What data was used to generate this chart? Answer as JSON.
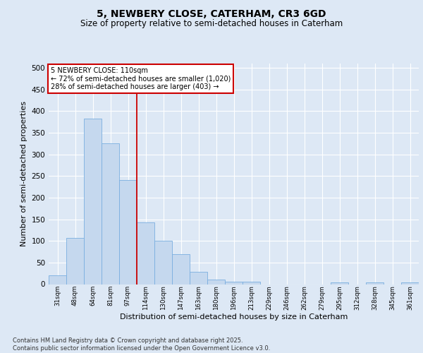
{
  "title_line1": "5, NEWBERY CLOSE, CATERHAM, CR3 6GD",
  "title_line2": "Size of property relative to semi-detached houses in Caterham",
  "xlabel": "Distribution of semi-detached houses by size in Caterham",
  "ylabel": "Number of semi-detached properties",
  "categories": [
    "31sqm",
    "48sqm",
    "64sqm",
    "81sqm",
    "97sqm",
    "114sqm",
    "130sqm",
    "147sqm",
    "163sqm",
    "180sqm",
    "196sqm",
    "213sqm",
    "229sqm",
    "246sqm",
    "262sqm",
    "279sqm",
    "295sqm",
    "312sqm",
    "328sqm",
    "345sqm",
    "361sqm"
  ],
  "values": [
    20,
    107,
    383,
    325,
    240,
    143,
    101,
    69,
    28,
    10,
    5,
    6,
    0,
    0,
    0,
    0,
    4,
    0,
    4,
    0,
    4
  ],
  "bar_color": "#c5d8ee",
  "bar_edge_color": "#7aafe0",
  "vline_color": "#cc0000",
  "annotation_text": "5 NEWBERY CLOSE: 110sqm\n← 72% of semi-detached houses are smaller (1,020)\n28% of semi-detached houses are larger (403) →",
  "annotation_box_facecolor": "#ffffff",
  "annotation_box_edgecolor": "#cc0000",
  "background_color": "#dde8f5",
  "footer_text": "Contains HM Land Registry data © Crown copyright and database right 2025.\nContains public sector information licensed under the Open Government Licence v3.0.",
  "ylim": [
    0,
    510
  ],
  "yticks": [
    0,
    50,
    100,
    150,
    200,
    250,
    300,
    350,
    400,
    450,
    500
  ],
  "vline_pos": 4.5
}
